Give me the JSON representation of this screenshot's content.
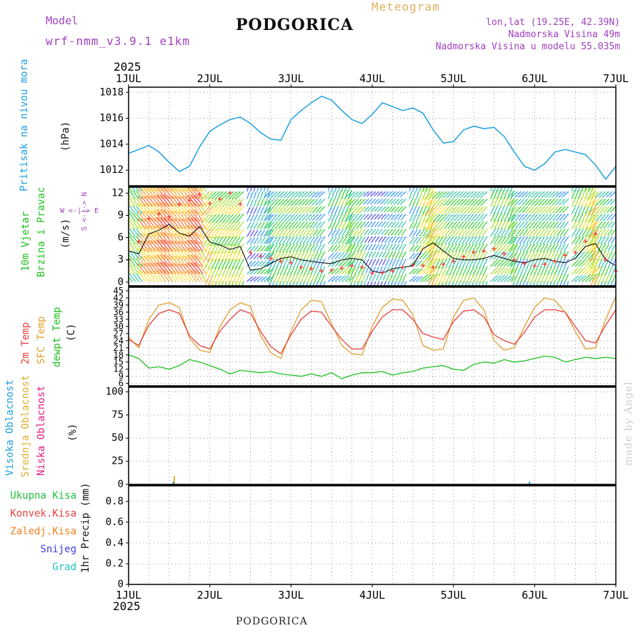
{
  "header": {
    "model_label": "Model",
    "model_name": "wrf-nmm_v3.9.1  e1km",
    "title": "PODGORICA",
    "meteogram_label": "Meteogram",
    "coords": "lon,lat (19.25E, 42.39N)",
    "elevation": "Nadmorska Visina 49m",
    "model_elevation": "Nadmorska Visina u modelu 55.035m"
  },
  "footer": {
    "station": "PODGORICA",
    "credit": "made by Angel"
  },
  "time_axis": {
    "year": "2025",
    "day_labels": [
      "1JUL",
      "2JUL",
      "3JUL",
      "4JUL",
      "5JUL",
      "6JUL",
      "7JUL"
    ]
  },
  "panels": {
    "pressure": {
      "label": "Pritisak na nivou mora",
      "unit": "(hPa)",
      "ticks": [
        "1012",
        "1014",
        "1016",
        "1018"
      ]
    },
    "wind": {
      "label1": "10m Vjetar",
      "label2": "Brzina i Pravac",
      "unit": "(m/s)",
      "ticks": [
        "0",
        "3",
        "6",
        "9",
        "12"
      ],
      "compass": "W <-|-> E",
      "compass_ns": "S <-|-> N"
    },
    "temp": {
      "label1": "2m Temp",
      "label2": "SFC Temp",
      "label3": "dewpt Temp",
      "unit": "(C)",
      "ticks": [
        "6",
        "9",
        "12",
        "15",
        "18",
        "21",
        "24",
        "27",
        "30",
        "33",
        "36",
        "39",
        "42",
        "45"
      ]
    },
    "cloud": {
      "label1": "Visoka Oblacnost",
      "label2": "Srednja Oblacnost",
      "label3": "Niska Oblacnost",
      "unit": "(%)",
      "ticks": [
        "0",
        "25",
        "50",
        "75",
        "100"
      ]
    },
    "precip": {
      "legend": [
        "Ukupna Kisa",
        "Konvek.Kisa",
        "Zaledj.Kisa",
        "Snijeg",
        "Grad"
      ],
      "unit": "1hr Precip (mm)",
      "ticks": [
        "0",
        "0.2",
        "0.4",
        "0.6",
        "0.8"
      ]
    }
  },
  "colors": {
    "pressure": "#1fa0e0",
    "temp2m": "#e84040",
    "sfc": "#e0a030",
    "dewpt": "#20c020",
    "wind_speed": "#000000",
    "gust": "#ff3030",
    "high_cloud": "#20a0e0",
    "mid_cloud": "#e0b030",
    "low_cloud": "#e02080",
    "precip_total": "#20c040",
    "precip_conv": "#e84040",
    "precip_frz": "#f08020",
    "snow": "#4040e0",
    "hail": "#20c0c0"
  },
  "chart_data": [
    {
      "type": "line",
      "panel": "pressure",
      "ylabel": "Pritisak na nivou mora (hPa)",
      "ylim": [
        1010.8,
        1018.4
      ],
      "x_hours": [
        0,
        3,
        6,
        9,
        12,
        15,
        18,
        21,
        24,
        27,
        30,
        33,
        36,
        39,
        42,
        45,
        48,
        51,
        54,
        57,
        60,
        63,
        66,
        69,
        72,
        75,
        78,
        81,
        84,
        87,
        90,
        93,
        96,
        99,
        102,
        105,
        108,
        111,
        114,
        117,
        120,
        123,
        126,
        129,
        132,
        135,
        138,
        141,
        144
      ],
      "series": [
        {
          "name": "Pritisak na nivou mora",
          "values": [
            1013.3,
            1013.6,
            1013.9,
            1013.4,
            1012.6,
            1011.9,
            1012.3,
            1013.8,
            1015.0,
            1015.5,
            1015.9,
            1016.1,
            1015.6,
            1014.9,
            1014.4,
            1014.3,
            1015.9,
            1016.6,
            1017.2,
            1017.7,
            1017.4,
            1016.6,
            1015.9,
            1015.6,
            1016.3,
            1017.2,
            1016.9,
            1016.6,
            1016.8,
            1016.4,
            1015.1,
            1014.1,
            1014.2,
            1015.1,
            1015.4,
            1015.2,
            1015.3,
            1014.6,
            1013.4,
            1012.3,
            1012.0,
            1012.5,
            1013.4,
            1013.6,
            1013.4,
            1013.2,
            1012.4,
            1011.3,
            1012.3
          ]
        }
      ]
    },
    {
      "type": "line",
      "panel": "wind",
      "ylabel": "10m Vjetar Brzina i Pravac (m/s)",
      "ylim": [
        -0.5,
        12.8
      ],
      "x_hours": [
        0,
        3,
        6,
        9,
        12,
        15,
        18,
        21,
        24,
        27,
        30,
        33,
        36,
        39,
        42,
        45,
        48,
        51,
        54,
        57,
        60,
        63,
        66,
        69,
        72,
        75,
        78,
        81,
        84,
        87,
        90,
        93,
        96,
        99,
        102,
        105,
        108,
        111,
        114,
        117,
        120,
        123,
        126,
        129,
        132,
        135,
        138,
        141,
        144
      ],
      "series": [
        {
          "name": "Brzina",
          "values": [
            4.2,
            3.8,
            6.5,
            7.0,
            7.8,
            6.6,
            6.2,
            7.5,
            5.4,
            5.0,
            4.4,
            4.8,
            1.6,
            1.8,
            2.5,
            3.2,
            3.4,
            3.0,
            2.8,
            2.6,
            2.5,
            3.0,
            3.2,
            3.0,
            1.5,
            1.2,
            1.8,
            2.0,
            2.2,
            4.5,
            5.3,
            4.2,
            3.2,
            3.0,
            3.0,
            3.2,
            3.6,
            3.2,
            2.8,
            2.6,
            3.0,
            3.2,
            2.8,
            2.6,
            3.2,
            4.8,
            5.2,
            3.0,
            2.2
          ]
        },
        {
          "name": "Udari",
          "values": [
            3.0,
            5.5,
            8.6,
            9.2,
            8.8,
            10.5,
            11.0,
            11.8,
            10.6,
            11.2,
            12.0,
            10.5,
            4.0,
            3.5,
            3.2,
            2.8,
            2.6,
            2.0,
            1.8,
            1.5,
            1.6,
            1.9,
            2.2,
            2.0,
            1.2,
            1.3,
            1.5,
            2.0,
            2.3,
            2.2,
            2.0,
            2.4,
            2.8,
            3.4,
            4.0,
            4.2,
            4.5,
            3.8,
            3.0,
            2.5,
            2.2,
            2.4,
            2.8,
            3.6,
            4.0,
            5.5,
            6.5,
            3.0,
            1.5
          ]
        }
      ]
    },
    {
      "type": "line",
      "panel": "temperature",
      "ylabel": "Temp (C)",
      "ylim": [
        5,
        46.5
      ],
      "x_hours": [
        0,
        3,
        6,
        9,
        12,
        15,
        18,
        21,
        24,
        27,
        30,
        33,
        36,
        39,
        42,
        45,
        48,
        51,
        54,
        57,
        60,
        63,
        66,
        69,
        72,
        75,
        78,
        81,
        84,
        87,
        90,
        93,
        96,
        99,
        102,
        105,
        108,
        111,
        114,
        117,
        120,
        123,
        126,
        129,
        132,
        135,
        138,
        141,
        144
      ],
      "series": [
        {
          "name": "2m Temp",
          "values": [
            24.5,
            22.0,
            30.5,
            35.5,
            37.0,
            35.5,
            26.0,
            22.0,
            20.5,
            28.0,
            33.0,
            37.0,
            35.5,
            28.0,
            21.5,
            18.5,
            26.5,
            33.0,
            36.5,
            36.0,
            30.0,
            24.5,
            20.5,
            20.5,
            28.0,
            34.0,
            37.0,
            37.0,
            33.0,
            27.0,
            25.5,
            24.5,
            32.0,
            36.5,
            37.0,
            34.0,
            26.5,
            24.0,
            22.5,
            27.5,
            34.0,
            37.0,
            37.0,
            36.0,
            30.0,
            24.0,
            23.0,
            30.5,
            37.0
          ]
        },
        {
          "name": "SFC Temp",
          "values": [
            25.5,
            21.0,
            33.0,
            39.0,
            40.0,
            38.0,
            25.0,
            20.0,
            19.0,
            30.0,
            37.0,
            40.0,
            38.5,
            26.0,
            19.0,
            16.5,
            28.0,
            37.0,
            41.0,
            40.5,
            31.0,
            22.0,
            18.5,
            18.0,
            30.0,
            38.0,
            41.5,
            41.0,
            35.0,
            22.0,
            20.0,
            20.5,
            34.0,
            41.0,
            42.0,
            37.0,
            24.0,
            20.0,
            21.0,
            30.0,
            38.0,
            42.0,
            41.0,
            36.0,
            28.0,
            20.5,
            21.0,
            33.0,
            42.5
          ]
        },
        {
          "name": "dewpt Temp",
          "values": [
            18.0,
            16.5,
            12.5,
            13.0,
            12.0,
            13.5,
            16.0,
            15.0,
            13.5,
            12.0,
            10.0,
            11.5,
            11.0,
            10.5,
            11.0,
            10.0,
            9.5,
            9.0,
            10.0,
            9.0,
            10.5,
            8.0,
            9.5,
            10.5,
            10.5,
            11.0,
            9.5,
            10.5,
            11.0,
            12.5,
            13.0,
            13.5,
            12.0,
            11.5,
            14.0,
            15.0,
            14.5,
            16.0,
            15.0,
            15.5,
            16.5,
            17.5,
            17.0,
            15.0,
            16.0,
            17.0,
            16.5,
            17.0,
            16.5
          ]
        }
      ]
    },
    {
      "type": "bar",
      "panel": "cloud",
      "ylabel": "Oblacnost (%)",
      "ylim": [
        0,
        105
      ],
      "series": [
        {
          "name": "Srednja Oblacnost",
          "x_hours": [
            13.5
          ],
          "values": [
            9
          ]
        },
        {
          "name": "Visoka Oblacnost",
          "x_hours": [
            13.2,
            118.5
          ],
          "values": [
            3,
            3
          ]
        },
        {
          "name": "Niska Oblacnost",
          "x_hours": [],
          "values": []
        }
      ]
    },
    {
      "type": "bar",
      "panel": "precip",
      "ylabel": "1hr Precip (mm)",
      "ylim": [
        0,
        0.95
      ],
      "series": [
        {
          "name": "Ukupna Kisa",
          "x_hours": [],
          "values": []
        },
        {
          "name": "Konvek.Kisa",
          "x_hours": [],
          "values": []
        },
        {
          "name": "Zaledj.Kisa",
          "x_hours": [],
          "values": []
        },
        {
          "name": "Snijeg",
          "x_hours": [],
          "values": []
        },
        {
          "name": "Grad",
          "x_hours": [],
          "values": []
        }
      ]
    }
  ]
}
